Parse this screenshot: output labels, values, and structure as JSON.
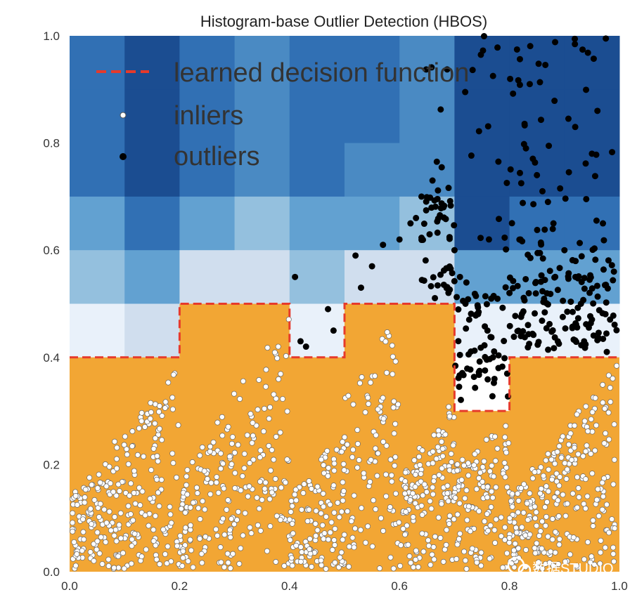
{
  "chart_data": {
    "type": "scatter",
    "title": "Histogram-base Outlier Detection (HBOS)",
    "xlabel": "",
    "ylabel": "",
    "xlim": [
      0.0,
      1.0
    ],
    "ylim": [
      0.0,
      1.0
    ],
    "x_ticks": [
      "0.0",
      "0.2",
      "0.4",
      "0.6",
      "0.8",
      "1.0"
    ],
    "y_ticks": [
      "0.0",
      "0.2",
      "0.4",
      "0.6",
      "0.8",
      "1.0"
    ],
    "grid": false,
    "legend": {
      "placement": "top-left",
      "entries": [
        "learned decision function",
        "inliers",
        "outliers"
      ]
    },
    "decision_threshold_contour": {
      "name": "learned decision function",
      "color": "#e63a2b",
      "style": "dashed",
      "x": [
        0.0,
        0.2,
        0.2,
        0.4,
        0.4,
        0.5,
        0.5,
        0.7,
        0.7,
        0.8,
        0.8,
        1.0
      ],
      "y": [
        0.4,
        0.4,
        0.5,
        0.5,
        0.4,
        0.4,
        0.5,
        0.5,
        0.3,
        0.3,
        0.4,
        0.4
      ]
    },
    "inlier_region_color": "#f2a634",
    "score_bins_x": [
      0.0,
      0.1,
      0.2,
      0.3,
      0.4,
      0.5,
      0.6,
      0.7,
      0.8,
      0.9,
      1.0
    ],
    "score_bins_y": [
      0.0,
      0.1,
      0.2,
      0.3,
      0.4,
      0.5,
      0.6,
      0.7,
      0.8,
      0.9,
      1.0
    ],
    "score_levels_top_down": [
      [
        7,
        8,
        7,
        6,
        7,
        7,
        6,
        8,
        8,
        8
      ],
      [
        7,
        8,
        7,
        6,
        7,
        7,
        6,
        8,
        8,
        8
      ],
      [
        7,
        8,
        7,
        6,
        7,
        6,
        6,
        8,
        8,
        8
      ],
      [
        5,
        7,
        5,
        4,
        5,
        5,
        4,
        8,
        7,
        7
      ],
      [
        4,
        5,
        2,
        2,
        4,
        2,
        2,
        5,
        5,
        5
      ],
      [
        1,
        2,
        0,
        0,
        1,
        0,
        0,
        1,
        1,
        1
      ]
    ],
    "score_palette": [
      "#ffffff",
      "#e9f1fa",
      "#d0deee",
      "#b5d0e6",
      "#94c0de",
      "#62a1d1",
      "#4a8ac3",
      "#3170b4",
      "#1b4d91"
    ],
    "inlier_point_color": "#ffffff",
    "outlier_point_color": "#000000",
    "inliers_description": "dense white points filling the lower region, banded by x-bins",
    "outliers": {
      "x": [
        0.41,
        0.42,
        0.43,
        0.47,
        0.48,
        0.52,
        0.53,
        0.55,
        0.57,
        0.6,
        0.62,
        0.63,
        0.64,
        0.66,
        0.68,
        0.7,
        0.71,
        0.72,
        0.74,
        0.76,
        0.77,
        0.78,
        0.8,
        0.82,
        0.83,
        0.85,
        0.86,
        0.87,
        0.88,
        0.9,
        0.92,
        0.93,
        0.95,
        0.96,
        0.97,
        0.99
      ],
      "y": [
        0.55,
        0.43,
        0.42,
        0.49,
        0.45,
        0.59,
        0.53,
        0.57,
        0.61,
        0.62,
        0.65,
        0.66,
        0.7,
        0.73,
        0.68,
        0.6,
        0.55,
        0.5,
        0.48,
        0.45,
        0.4,
        0.38,
        0.52,
        0.62,
        0.79,
        0.74,
        0.71,
        0.69,
        0.65,
        0.6,
        0.55,
        0.5,
        0.78,
        0.86,
        0.65,
        0.56
      ]
    }
  },
  "watermark": {
    "text": "数据STUDIO"
  }
}
